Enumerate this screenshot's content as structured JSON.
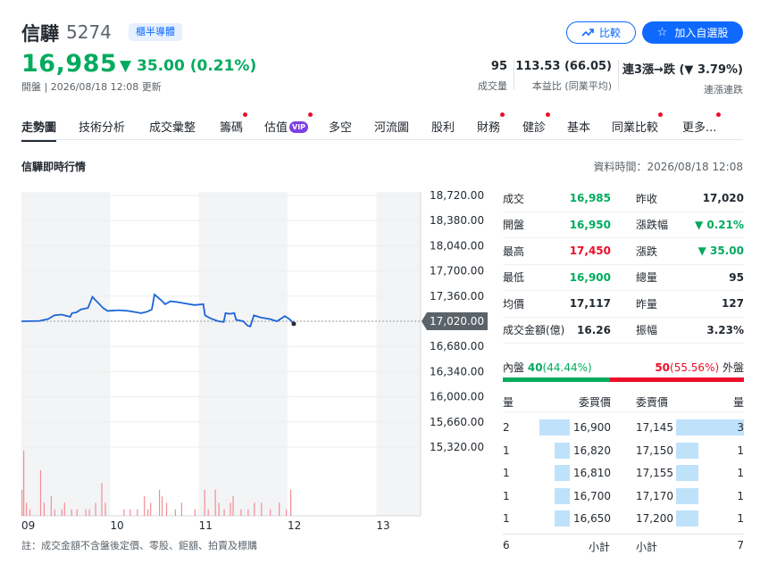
{
  "header": {
    "name": "信驊",
    "code": "5274",
    "industry": "櫃半導體",
    "price": "16,985",
    "change": "35.00 (0.21%)",
    "updated": "開盤 | 2026/08/18 12:08 更新",
    "compare_label": "比較",
    "watch_label": "加入自選股",
    "stats": [
      {
        "value": "95",
        "label": "成交量"
      },
      {
        "value": "113.53 (66.05)",
        "label": "本益比 (同業平均)"
      },
      {
        "value": "連3漲→跌 (▼ 3.79%)",
        "label": "連漲連跌"
      }
    ]
  },
  "tabs": [
    {
      "label": "走勢圖",
      "dot": false
    },
    {
      "label": "技術分析",
      "dot": false
    },
    {
      "label": "成交彙整",
      "dot": false
    },
    {
      "label": "籌碼",
      "dot": true
    },
    {
      "label": "估值",
      "dot": true,
      "vip": "VIP"
    },
    {
      "label": "多空",
      "dot": false
    },
    {
      "label": "河流圖",
      "dot": false
    },
    {
      "label": "股利",
      "dot": false
    },
    {
      "label": "財務",
      "dot": true
    },
    {
      "label": "健診",
      "dot": true
    },
    {
      "label": "基本",
      "dot": false
    },
    {
      "label": "同業比較",
      "dot": true
    },
    {
      "label": "更多...",
      "dot": true
    }
  ],
  "section": {
    "title": "信驊即時行情",
    "data_time": "資料時間：2026/08/18 12:08"
  },
  "chart_data": {
    "type": "line",
    "y_ticks": [
      "18,720.00",
      "18,380.00",
      "18,040.00",
      "17,700.00",
      "17,360.00",
      "17,020.00",
      "16,680.00",
      "16,340.00",
      "16,000.00",
      "15,660.00",
      "15,320.00"
    ],
    "y_tick_values": [
      18720,
      18380,
      18040,
      17700,
      17360,
      17020,
      16680,
      16340,
      16000,
      15660,
      15320
    ],
    "x_ticks": [
      "09",
      "10",
      "11",
      "12",
      "13"
    ],
    "x_tick_times": [
      9,
      10,
      11,
      12,
      13
    ],
    "reference": 17020,
    "reference_label": "17,020.00",
    "ylim": [
      15320,
      18720
    ],
    "xlim": [
      9,
      13.5
    ],
    "price_points": [
      [
        9.0,
        17020
      ],
      [
        9.2,
        17025
      ],
      [
        9.3,
        17050
      ],
      [
        9.37,
        17100
      ],
      [
        9.45,
        17110
      ],
      [
        9.5,
        17095
      ],
      [
        9.55,
        17080
      ],
      [
        9.57,
        17130
      ],
      [
        9.62,
        17140
      ],
      [
        9.67,
        17180
      ],
      [
        9.75,
        17200
      ],
      [
        9.8,
        17350
      ],
      [
        9.84,
        17300
      ],
      [
        9.92,
        17200
      ],
      [
        9.97,
        17160
      ],
      [
        10.1,
        17170
      ],
      [
        10.2,
        17160
      ],
      [
        10.3,
        17140
      ],
      [
        10.35,
        17130
      ],
      [
        10.42,
        17150
      ],
      [
        10.47,
        17180
      ],
      [
        10.5,
        17380
      ],
      [
        10.58,
        17300
      ],
      [
        10.62,
        17250
      ],
      [
        10.68,
        17290
      ],
      [
        10.75,
        17280
      ],
      [
        10.85,
        17260
      ],
      [
        10.95,
        17240
      ],
      [
        11.05,
        17250
      ],
      [
        11.07,
        17100
      ],
      [
        11.13,
        17060
      ],
      [
        11.22,
        17020
      ],
      [
        11.28,
        17010
      ],
      [
        11.3,
        17130
      ],
      [
        11.35,
        17120
      ],
      [
        11.4,
        17130
      ],
      [
        11.42,
        17040
      ],
      [
        11.5,
        17020
      ],
      [
        11.55,
        16960
      ],
      [
        11.58,
        16950
      ],
      [
        11.62,
        17100
      ],
      [
        11.7,
        17070
      ],
      [
        11.8,
        17050
      ],
      [
        11.88,
        17020
      ],
      [
        11.97,
        17090
      ],
      [
        12.03,
        17040
      ],
      [
        12.07,
        16985
      ]
    ],
    "volume_max": 10,
    "volume_bars": [
      [
        9.0,
        4
      ],
      [
        9.02,
        10
      ],
      [
        9.05,
        2
      ],
      [
        9.09,
        1
      ],
      [
        9.21,
        7
      ],
      [
        9.25,
        2
      ],
      [
        9.33,
        3
      ],
      [
        9.37,
        1
      ],
      [
        9.45,
        1
      ],
      [
        9.48,
        2
      ],
      [
        9.56,
        1
      ],
      [
        9.62,
        1
      ],
      [
        9.72,
        1
      ],
      [
        9.76,
        1
      ],
      [
        9.83,
        2
      ],
      [
        9.9,
        5
      ],
      [
        9.94,
        2
      ],
      [
        10.15,
        1
      ],
      [
        10.22,
        1
      ],
      [
        10.3,
        1
      ],
      [
        10.38,
        3
      ],
      [
        10.42,
        1
      ],
      [
        10.45,
        2
      ],
      [
        10.55,
        4
      ],
      [
        10.58,
        3
      ],
      [
        10.63,
        2
      ],
      [
        10.73,
        1
      ],
      [
        10.8,
        2
      ],
      [
        10.95,
        1
      ],
      [
        11.06,
        4
      ],
      [
        11.1,
        1
      ],
      [
        11.18,
        4
      ],
      [
        11.22,
        2
      ],
      [
        11.28,
        1
      ],
      [
        11.35,
        2
      ],
      [
        11.38,
        3
      ],
      [
        11.47,
        1
      ],
      [
        11.55,
        1
      ],
      [
        11.62,
        2
      ],
      [
        11.7,
        2
      ],
      [
        11.8,
        1
      ],
      [
        11.9,
        2
      ],
      [
        11.98,
        1
      ],
      [
        12.03,
        4
      ]
    ]
  },
  "quote": {
    "rows": [
      {
        "l1": "成交",
        "v1": "16,985",
        "c1": "green",
        "l2": "昨收",
        "v2": "17,020",
        "c2": ""
      },
      {
        "l1": "開盤",
        "v1": "16,950",
        "c1": "green",
        "l2": "漲跌幅",
        "v2": "▼ 0.21%",
        "c2": "green"
      },
      {
        "l1": "最高",
        "v1": "17,450",
        "c1": "red",
        "l2": "漲跌",
        "v2": "▼ 35.00",
        "c2": "green"
      },
      {
        "l1": "最低",
        "v1": "16,900",
        "c1": "green",
        "l2": "總量",
        "v2": "95",
        "c2": ""
      },
      {
        "l1": "均價",
        "v1": "17,117",
        "c1": "",
        "l2": "昨量",
        "v2": "127",
        "c2": ""
      },
      {
        "l1": "成交金額(億)",
        "v1": "16.26",
        "c1": "",
        "l2": "振幅",
        "v2": "3.23%",
        "c2": ""
      }
    ],
    "inner_label": "內盤",
    "inner_value": "40",
    "inner_pct": "(44.44%)",
    "outer_label": "外盤",
    "outer_value": "50",
    "outer_pct": "(55.56%)",
    "inner_ratio": 0.4444,
    "colors": {
      "inner": "#00ab5e",
      "outer": "#eb0f29",
      "line": "#1b65d6"
    }
  },
  "order_book": {
    "head": {
      "qty": "量",
      "bid_price": "委買價",
      "ask_price": "委賣價",
      "qty2": "量"
    },
    "rows": [
      {
        "bid_qty": "2",
        "bid_price": "16,900",
        "ask_price": "17,145",
        "ask_qty": "3",
        "bid_ratio": 0.67,
        "ask_ratio": 1.0
      },
      {
        "bid_qty": "1",
        "bid_price": "16,820",
        "ask_price": "17,150",
        "ask_qty": "1",
        "bid_ratio": 0.33,
        "ask_ratio": 0.33
      },
      {
        "bid_qty": "1",
        "bid_price": "16,810",
        "ask_price": "17,155",
        "ask_qty": "1",
        "bid_ratio": 0.33,
        "ask_ratio": 0.33
      },
      {
        "bid_qty": "1",
        "bid_price": "16,700",
        "ask_price": "17,170",
        "ask_qty": "1",
        "bid_ratio": 0.33,
        "ask_ratio": 0.33
      },
      {
        "bid_qty": "1",
        "bid_price": "16,650",
        "ask_price": "17,200",
        "ask_qty": "1",
        "bid_ratio": 0.33,
        "ask_ratio": 0.33
      }
    ],
    "foot": {
      "bid_total": "6",
      "bid_label": "小計",
      "ask_label": "小計",
      "ask_total": "7"
    }
  },
  "note": "註：成交金額不含盤後定價、零股、鉅額、拍賣及標購"
}
